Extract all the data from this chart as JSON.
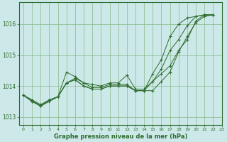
{
  "title": "Graphe pression niveau de la mer (hPa)",
  "background_color": "#cce8e8",
  "grid_color": "#88bb88",
  "line_color": "#2d6b2d",
  "spine_color": "#2d6b2d",
  "xlim": [
    -0.5,
    23
  ],
  "ylim": [
    1012.75,
    1016.7
  ],
  "yticks": [
    1013,
    1014,
    1015,
    1016
  ],
  "xticks": [
    0,
    1,
    2,
    3,
    4,
    5,
    6,
    7,
    8,
    9,
    10,
    11,
    12,
    13,
    14,
    15,
    16,
    17,
    18,
    19,
    20,
    21,
    22,
    23
  ],
  "series": [
    [
      1013.7,
      1013.55,
      1013.35,
      1013.5,
      1013.65,
      1014.45,
      1014.3,
      1014.1,
      1014.05,
      1014.0,
      1014.1,
      1014.1,
      1014.35,
      1013.9,
      1013.9,
      1014.15,
      1014.4,
      1014.65,
      1015.15,
      1015.5,
      1016.1,
      1016.3,
      1016.3
    ],
    [
      1013.7,
      1013.5,
      1013.35,
      1013.55,
      1013.65,
      1014.1,
      1014.25,
      1014.1,
      1013.95,
      1013.95,
      1014.05,
      1014.05,
      1014.05,
      1013.85,
      1013.85,
      1014.15,
      1014.55,
      1015.15,
      1015.5,
      1015.95,
      1016.25,
      1016.3,
      1016.3
    ],
    [
      1013.7,
      1013.5,
      1013.35,
      1013.55,
      1013.65,
      1014.1,
      1014.2,
      1014.0,
      1013.9,
      1013.9,
      1014.0,
      1014.0,
      1014.0,
      1013.85,
      1013.85,
      1014.4,
      1014.85,
      1015.6,
      1016.0,
      1016.2,
      1016.25,
      1016.3,
      1016.3
    ],
    [
      1013.7,
      1013.55,
      1013.4,
      1013.55,
      1013.65,
      1014.1,
      1014.2,
      1014.0,
      1013.9,
      1013.9,
      1014.0,
      1014.0,
      1014.0,
      1013.85,
      1013.85,
      1013.85,
      1014.15,
      1014.45,
      1015.1,
      1015.6,
      1016.05,
      1016.25,
      1016.3
    ]
  ]
}
